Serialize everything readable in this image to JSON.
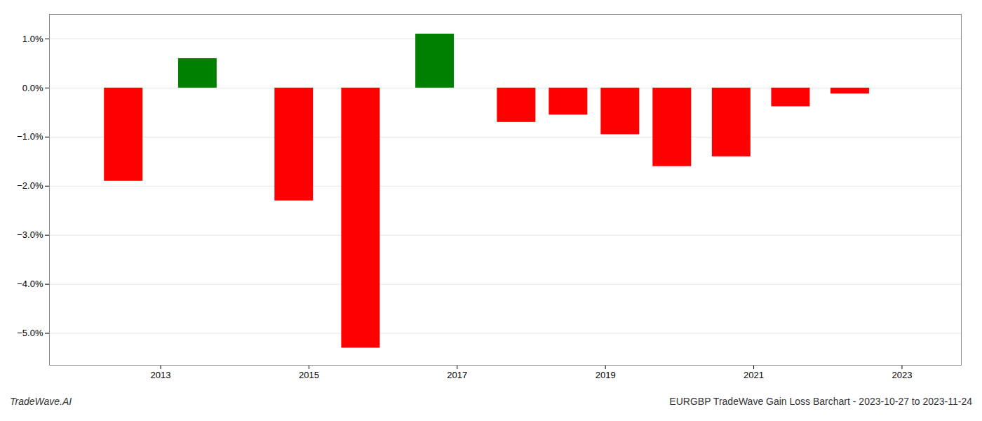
{
  "chart_data": {
    "type": "bar",
    "x": [
      2012.5,
      2013.5,
      2014.8,
      2015.7,
      2016.7,
      2017.8,
      2018.5,
      2019.2,
      2019.9,
      2020.7,
      2021.5,
      2022.3
    ],
    "values": [
      -1.9,
      0.6,
      -2.3,
      -5.3,
      1.1,
      -0.7,
      -0.55,
      -0.95,
      -1.6,
      -1.4,
      -0.38,
      -0.12
    ],
    "colors": [
      "#ff0000",
      "#008000",
      "#ff0000",
      "#ff0000",
      "#008000",
      "#ff0000",
      "#ff0000",
      "#ff0000",
      "#ff0000",
      "#ff0000",
      "#ff0000",
      "#ff0000"
    ],
    "xlim": [
      2011.5,
      2023.8
    ],
    "xticks": [
      2013,
      2015,
      2017,
      2019,
      2021,
      2023
    ],
    "ylim": [
      -5.65,
      1.5
    ],
    "yticks": [
      {
        "value": 1.0,
        "label": "1.0%"
      },
      {
        "value": 0.0,
        "label": "0.0%"
      },
      {
        "value": -1.0,
        "label": "−1.0%"
      },
      {
        "value": -2.0,
        "label": "−2.0%"
      },
      {
        "value": -3.0,
        "label": "−3.0%"
      },
      {
        "value": -4.0,
        "label": "−4.0%"
      },
      {
        "value": -5.0,
        "label": "−5.0%"
      }
    ],
    "grid": true,
    "annotations": [
      "TradeWave.AI",
      "EURGBP TradeWave Gain Loss Barchart - 2023-10-27 to 2023-11-24"
    ]
  }
}
